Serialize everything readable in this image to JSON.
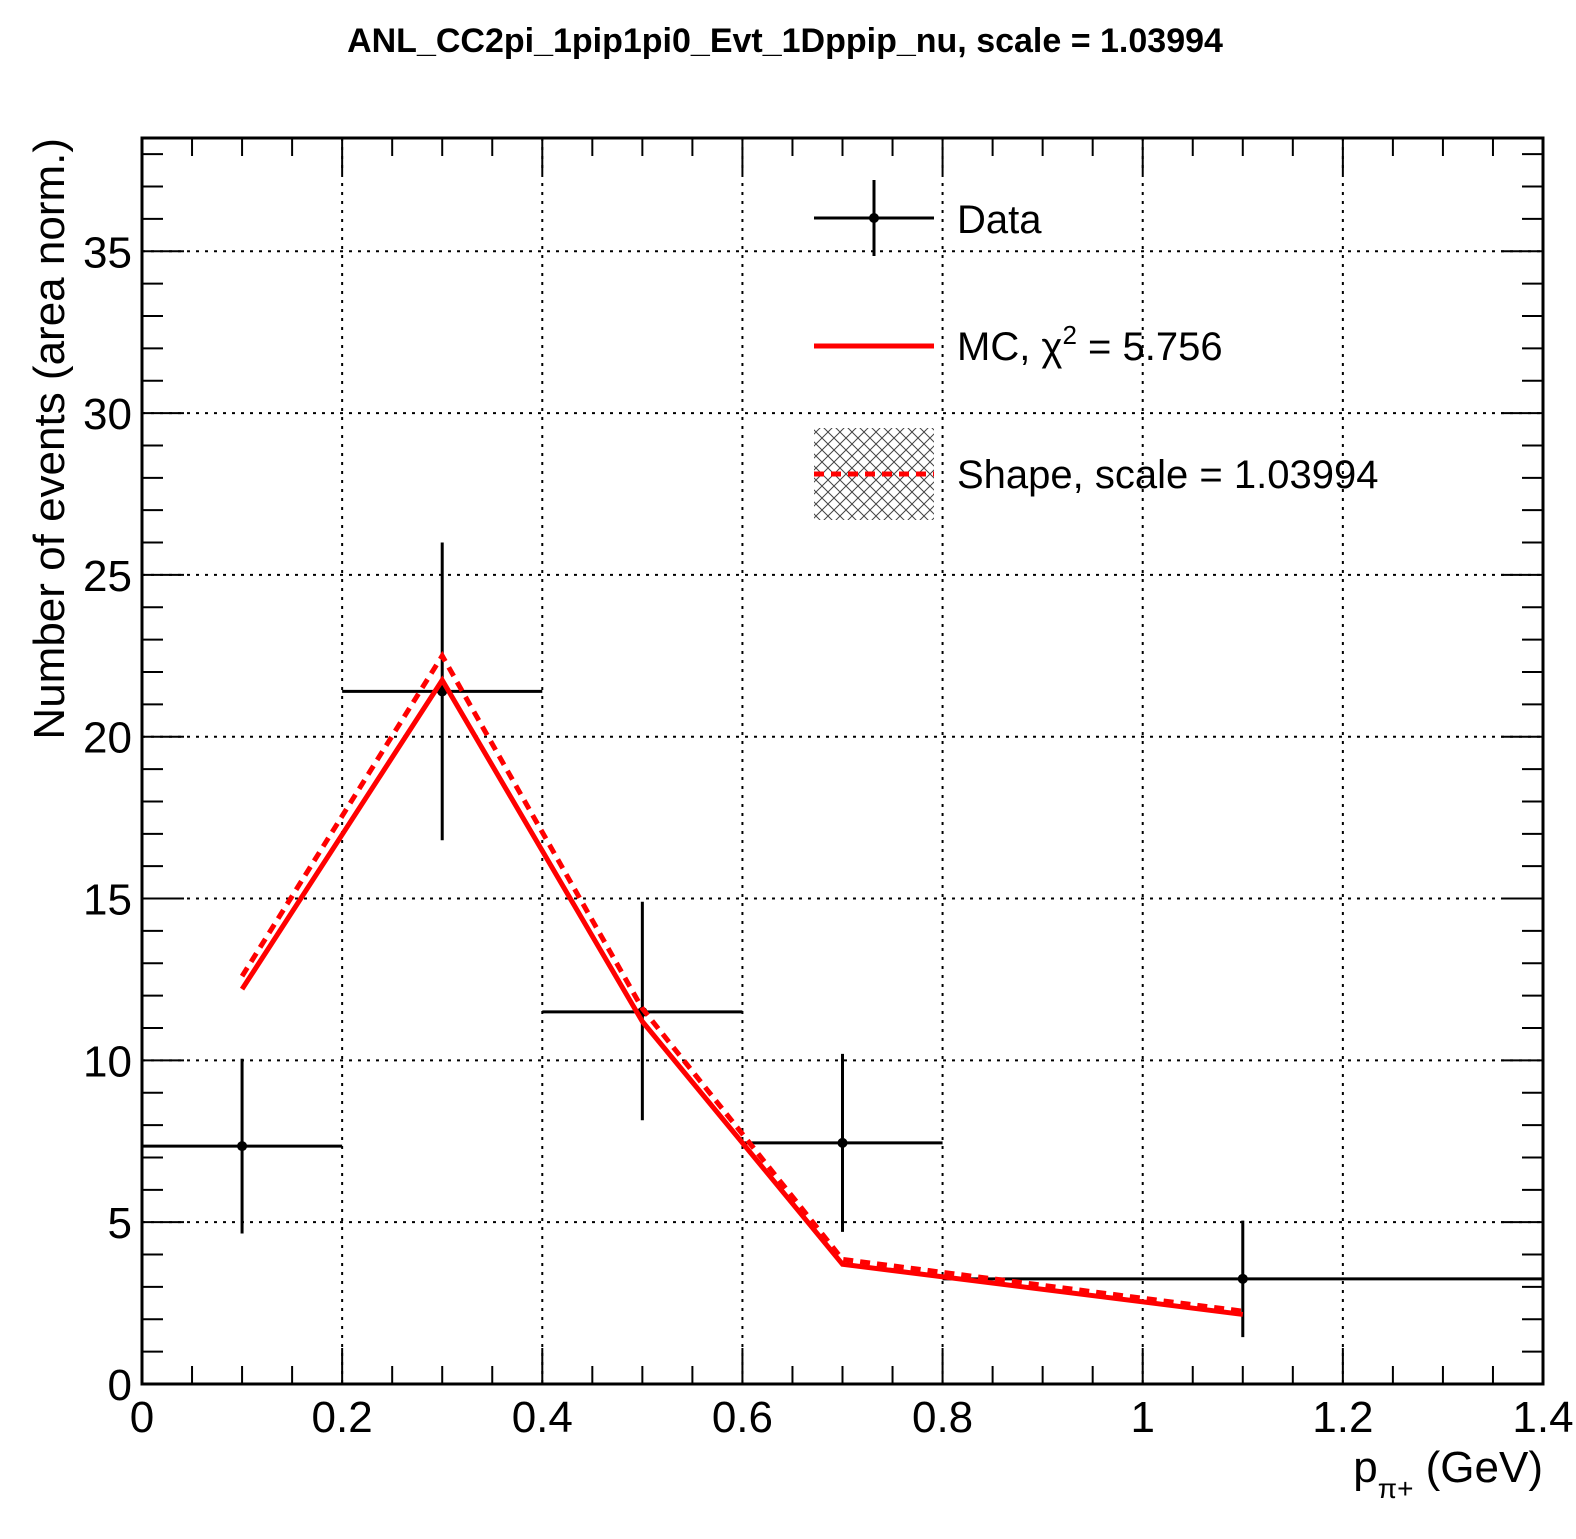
{
  "chart_data": {
    "type": "line",
    "title": "ANL_CC2pi_1pip1pi0_Evt_1Dppip_nu, scale = 1.03994",
    "xlabel": {
      "main": "p",
      "sub": "π+",
      "unit": " (GeV)"
    },
    "ylabel": "Number of events (area norm.)",
    "xlim": [
      0,
      1.4
    ],
    "ylim": [
      0,
      38.5
    ],
    "x_ticks": [
      0,
      0.2,
      0.4,
      0.6,
      0.8,
      1,
      1.2,
      1.4
    ],
    "x_tick_labels": [
      "0",
      "0.2",
      "0.4",
      "0.6",
      "0.8",
      "1",
      "1.2",
      "1.4"
    ],
    "y_ticks": [
      0,
      5,
      10,
      15,
      20,
      25,
      30,
      35
    ],
    "y_tick_labels": [
      "0",
      "5",
      "10",
      "15",
      "20",
      "25",
      "30",
      "35"
    ],
    "grid": true,
    "legend_position": "top-right",
    "series": [
      {
        "name": "Data",
        "kind": "errorbar",
        "color": "#000000",
        "x": [
          0.1,
          0.3,
          0.5,
          0.7,
          1.1
        ],
        "x_low": [
          0.0,
          0.2,
          0.4,
          0.6,
          0.8
        ],
        "x_high": [
          0.2,
          0.4,
          0.6,
          0.8,
          1.4
        ],
        "y": [
          7.35,
          21.4,
          11.5,
          7.45,
          3.25
        ],
        "y_err_low": [
          2.7,
          4.6,
          3.35,
          2.75,
          1.8
        ],
        "y_err_high": [
          2.7,
          4.6,
          3.4,
          2.75,
          1.8
        ]
      },
      {
        "name": "MC",
        "legend_label": "MC, χ",
        "legend_sup": "2",
        "legend_suffix": " = 5.756",
        "kind": "line",
        "color": "#ff0000",
        "x": [
          0.1,
          0.3,
          0.5,
          0.7,
          1.1
        ],
        "y": [
          12.2,
          21.75,
          11.2,
          3.7,
          2.15
        ]
      },
      {
        "name": "Shape, scale = 1.03994",
        "kind": "dashed-line",
        "color": "#ff0000",
        "x": [
          0.1,
          0.3,
          0.5,
          0.7,
          1.1
        ],
        "y": [
          12.6,
          22.5,
          11.6,
          3.85,
          2.25
        ]
      }
    ]
  }
}
